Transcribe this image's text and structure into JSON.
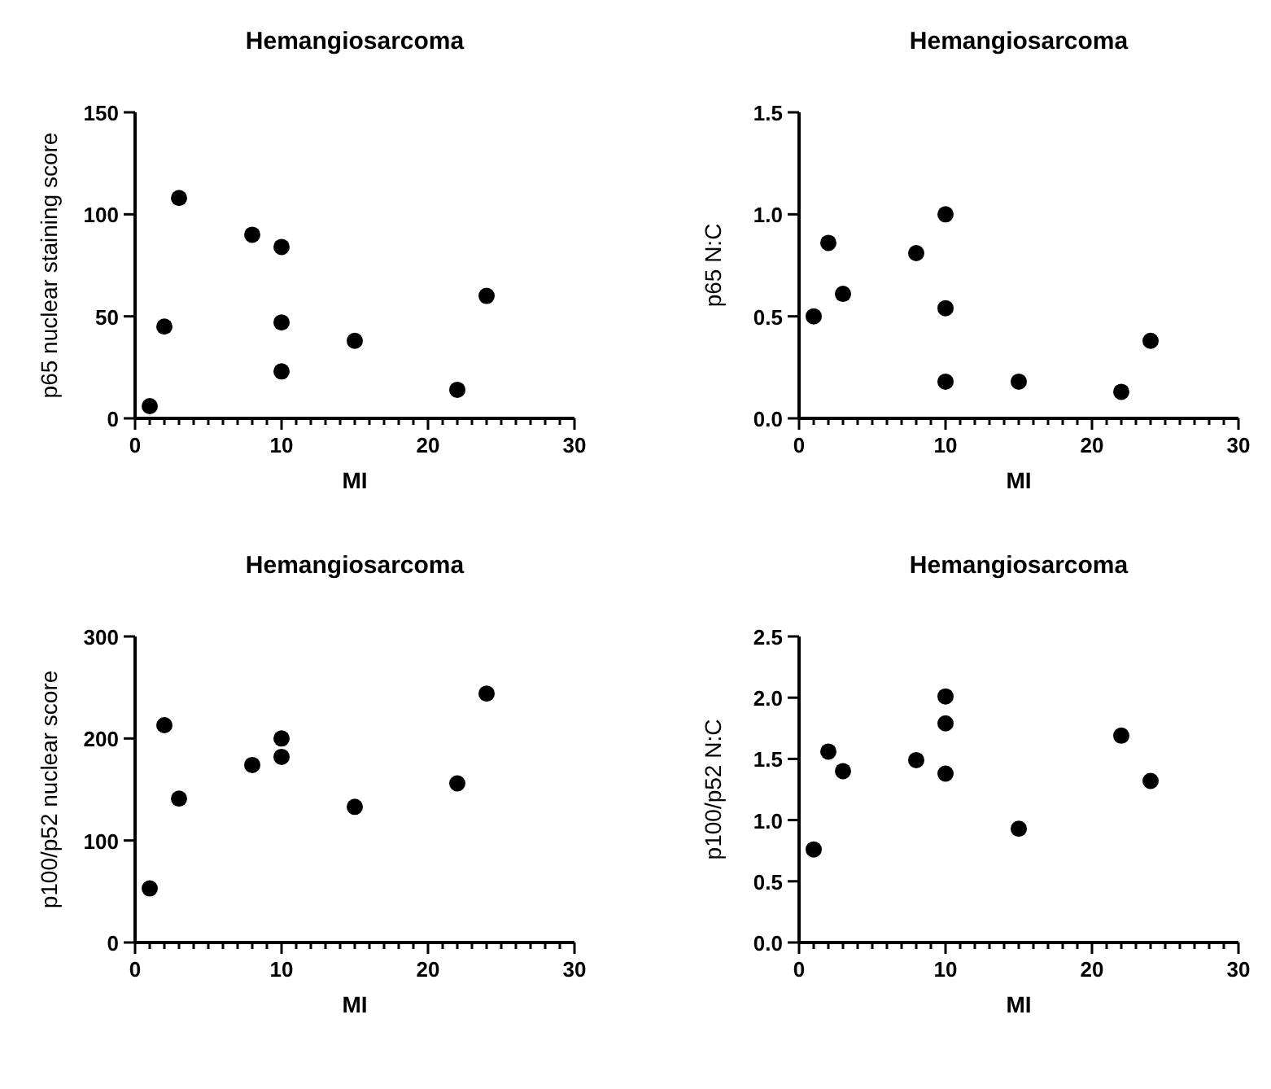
{
  "chart_data": [
    {
      "type": "scatter",
      "title": "Hemangiosarcoma",
      "xlabel": "MI",
      "ylabel": "p65 nuclear staining score",
      "marker": "circle",
      "grid": false,
      "xlim": [
        0,
        30
      ],
      "ylim": [
        0,
        150
      ],
      "yticks": [
        0,
        50,
        100,
        150
      ],
      "xticks": [
        0,
        {
          "value": 1,
          "label": null
        },
        {
          "value": 2,
          "label": null
        },
        {
          "value": 3,
          "label": null
        },
        {
          "value": 4,
          "label": null
        },
        {
          "value": 5,
          "label": null
        },
        {
          "value": 6,
          "label": null
        },
        {
          "value": 7,
          "label": null
        },
        {
          "value": 8,
          "label": null
        },
        {
          "value": 9,
          "label": null
        },
        10,
        {
          "value": 11,
          "label": null
        },
        {
          "value": 12,
          "label": null
        },
        {
          "value": 13,
          "label": null
        },
        {
          "value": 14,
          "label": null
        },
        {
          "value": 15,
          "label": null
        },
        {
          "value": 16,
          "label": null
        },
        {
          "value": 17,
          "label": null
        },
        {
          "value": 18,
          "label": null
        },
        {
          "value": 19,
          "label": null
        },
        20,
        {
          "value": 21,
          "label": null
        },
        {
          "value": 22,
          "label": null
        },
        {
          "value": 23,
          "label": null
        },
        {
          "value": 24,
          "label": null
        },
        {
          "value": 25,
          "label": null
        },
        {
          "value": 26,
          "label": null
        },
        {
          "value": 27,
          "label": null
        },
        {
          "value": 28,
          "label": null
        },
        {
          "value": 29,
          "label": null
        },
        30
      ],
      "series": [
        {
          "color": "#000000",
          "x": [
            1,
            2,
            3,
            8,
            10,
            10,
            10,
            15,
            22,
            24
          ],
          "values": [
            6,
            45,
            108,
            90,
            84,
            47,
            23,
            38,
            14,
            60
          ]
        }
      ]
    },
    {
      "type": "scatter",
      "title": "Hemangiosarcoma",
      "xlabel": "MI",
      "ylabel": "p65 N:C",
      "marker": "circle",
      "grid": false,
      "xlim": [
        0,
        30
      ],
      "ylim": [
        0,
        1.5
      ],
      "yticks": [
        {
          "value": 0,
          "label": "0.0"
        },
        {
          "value": 0.5,
          "label": "0.5"
        },
        {
          "value": 1,
          "label": "1.0"
        },
        {
          "value": 1.5,
          "label": "1.5"
        }
      ],
      "xticks": [
        0,
        {
          "value": 1,
          "label": null
        },
        {
          "value": 2,
          "label": null
        },
        {
          "value": 3,
          "label": null
        },
        {
          "value": 4,
          "label": null
        },
        {
          "value": 5,
          "label": null
        },
        {
          "value": 6,
          "label": null
        },
        {
          "value": 7,
          "label": null
        },
        {
          "value": 8,
          "label": null
        },
        {
          "value": 9,
          "label": null
        },
        10,
        {
          "value": 11,
          "label": null
        },
        {
          "value": 12,
          "label": null
        },
        {
          "value": 13,
          "label": null
        },
        {
          "value": 14,
          "label": null
        },
        {
          "value": 15,
          "label": null
        },
        {
          "value": 16,
          "label": null
        },
        {
          "value": 17,
          "label": null
        },
        {
          "value": 18,
          "label": null
        },
        {
          "value": 19,
          "label": null
        },
        20,
        {
          "value": 21,
          "label": null
        },
        {
          "value": 22,
          "label": null
        },
        {
          "value": 23,
          "label": null
        },
        {
          "value": 24,
          "label": null
        },
        {
          "value": 25,
          "label": null
        },
        {
          "value": 26,
          "label": null
        },
        {
          "value": 27,
          "label": null
        },
        {
          "value": 28,
          "label": null
        },
        {
          "value": 29,
          "label": null
        },
        30
      ],
      "series": [
        {
          "color": "#000000",
          "x": [
            1,
            2,
            3,
            8,
            10,
            10,
            10,
            15,
            22,
            24
          ],
          "values": [
            0.5,
            0.86,
            0.61,
            0.81,
            1.0,
            0.54,
            0.18,
            0.18,
            0.13,
            0.38
          ]
        }
      ]
    },
    {
      "type": "scatter",
      "title": "Hemangiosarcoma",
      "xlabel": "MI",
      "ylabel": "p100/p52 nuclear score",
      "marker": "circle",
      "grid": false,
      "xlim": [
        0,
        30
      ],
      "ylim": [
        0,
        300
      ],
      "yticks": [
        0,
        100,
        200,
        300
      ],
      "xticks": [
        0,
        {
          "value": 1,
          "label": null
        },
        {
          "value": 2,
          "label": null
        },
        {
          "value": 3,
          "label": null
        },
        {
          "value": 4,
          "label": null
        },
        {
          "value": 5,
          "label": null
        },
        {
          "value": 6,
          "label": null
        },
        {
          "value": 7,
          "label": null
        },
        {
          "value": 8,
          "label": null
        },
        {
          "value": 9,
          "label": null
        },
        10,
        {
          "value": 11,
          "label": null
        },
        {
          "value": 12,
          "label": null
        },
        {
          "value": 13,
          "label": null
        },
        {
          "value": 14,
          "label": null
        },
        {
          "value": 15,
          "label": null
        },
        {
          "value": 16,
          "label": null
        },
        {
          "value": 17,
          "label": null
        },
        {
          "value": 18,
          "label": null
        },
        {
          "value": 19,
          "label": null
        },
        20,
        {
          "value": 21,
          "label": null
        },
        {
          "value": 22,
          "label": null
        },
        {
          "value": 23,
          "label": null
        },
        {
          "value": 24,
          "label": null
        },
        {
          "value": 25,
          "label": null
        },
        {
          "value": 26,
          "label": null
        },
        {
          "value": 27,
          "label": null
        },
        {
          "value": 28,
          "label": null
        },
        {
          "value": 29,
          "label": null
        },
        30
      ],
      "series": [
        {
          "color": "#000000",
          "x": [
            1,
            2,
            3,
            8,
            10,
            10,
            15,
            22,
            24
          ],
          "values": [
            53,
            213,
            141,
            174,
            200,
            182,
            133,
            156,
            244
          ]
        }
      ]
    },
    {
      "type": "scatter",
      "title": "Hemangiosarcoma",
      "xlabel": "MI",
      "ylabel": "p100/p52 N:C",
      "marker": "circle",
      "grid": false,
      "xlim": [
        0,
        30
      ],
      "ylim": [
        0,
        2.5
      ],
      "yticks": [
        {
          "value": 0,
          "label": "0.0"
        },
        {
          "value": 0.5,
          "label": "0.5"
        },
        {
          "value": 1,
          "label": "1.0"
        },
        {
          "value": 1.5,
          "label": "1.5"
        },
        {
          "value": 2,
          "label": "2.0"
        },
        {
          "value": 2.5,
          "label": "2.5"
        }
      ],
      "xticks": [
        0,
        {
          "value": 1,
          "label": null
        },
        {
          "value": 2,
          "label": null
        },
        {
          "value": 3,
          "label": null
        },
        {
          "value": 4,
          "label": null
        },
        {
          "value": 5,
          "label": null
        },
        {
          "value": 6,
          "label": null
        },
        {
          "value": 7,
          "label": null
        },
        {
          "value": 8,
          "label": null
        },
        {
          "value": 9,
          "label": null
        },
        10,
        {
          "value": 11,
          "label": null
        },
        {
          "value": 12,
          "label": null
        },
        {
          "value": 13,
          "label": null
        },
        {
          "value": 14,
          "label": null
        },
        {
          "value": 15,
          "label": null
        },
        {
          "value": 16,
          "label": null
        },
        {
          "value": 17,
          "label": null
        },
        {
          "value": 18,
          "label": null
        },
        {
          "value": 19,
          "label": null
        },
        20,
        {
          "value": 21,
          "label": null
        },
        {
          "value": 22,
          "label": null
        },
        {
          "value": 23,
          "label": null
        },
        {
          "value": 24,
          "label": null
        },
        {
          "value": 25,
          "label": null
        },
        {
          "value": 26,
          "label": null
        },
        {
          "value": 27,
          "label": null
        },
        {
          "value": 28,
          "label": null
        },
        {
          "value": 29,
          "label": null
        },
        30
      ],
      "series": [
        {
          "color": "#000000",
          "x": [
            1,
            2,
            3,
            8,
            10,
            10,
            10,
            15,
            22,
            24
          ],
          "values": [
            0.76,
            1.56,
            1.4,
            1.49,
            2.01,
            1.79,
            1.38,
            0.93,
            1.69,
            1.32
          ]
        }
      ]
    }
  ]
}
